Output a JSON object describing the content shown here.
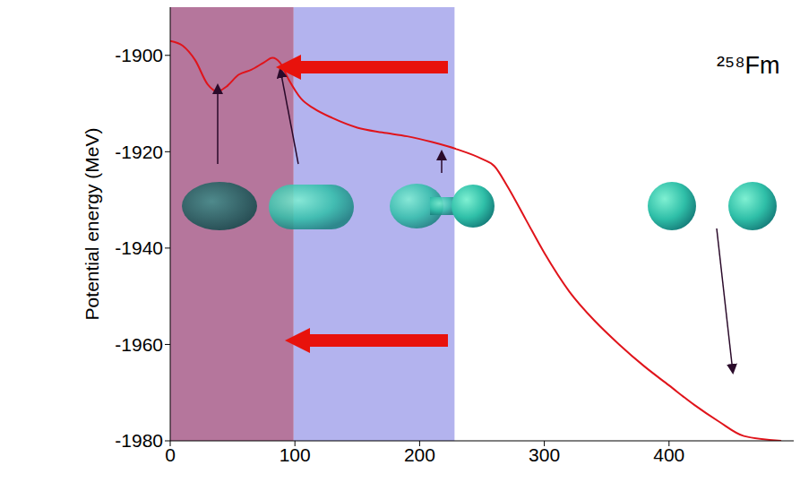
{
  "chart_data": {
    "type": "line",
    "y_label": "Potential energy (MeV)",
    "annotations": [
      "²⁵⁸Fm"
    ],
    "x": [
      0,
      10,
      20,
      30,
      38,
      45,
      55,
      65,
      75,
      82,
      88,
      95,
      105,
      115,
      130,
      150,
      170,
      190,
      210,
      230,
      250,
      260,
      270,
      285,
      300,
      320,
      340,
      360,
      380,
      400,
      420,
      440,
      460,
      490
    ],
    "values": [
      -1897,
      -1898,
      -1901,
      -1906,
      -1907.5,
      -1906.5,
      -1904,
      -1903,
      -1901.5,
      -1900.5,
      -1901.5,
      -1905,
      -1909,
      -1911,
      -1913,
      -1915,
      -1916,
      -1916.8,
      -1918,
      -1919.5,
      -1921.5,
      -1923,
      -1927,
      -1934,
      -1941,
      -1949,
      -1955,
      -1960,
      -1964.5,
      -1968.5,
      -1972.5,
      -1976,
      -1979,
      -1980
    ],
    "color": "#e0141b",
    "xlim": [
      0,
      500
    ],
    "xticks": [
      0,
      100,
      200,
      300,
      400
    ],
    "ylim": [
      -1980,
      -1890
    ],
    "yticks": [
      -1980,
      -1960,
      -1940,
      -1920,
      -1900
    ],
    "regions": [
      {
        "x": [
          0,
          99
        ],
        "color": "#b5769c"
      },
      {
        "x": [
          99,
          228
        ],
        "color": "#b3b3ee"
      }
    ],
    "grid": false
  }
}
